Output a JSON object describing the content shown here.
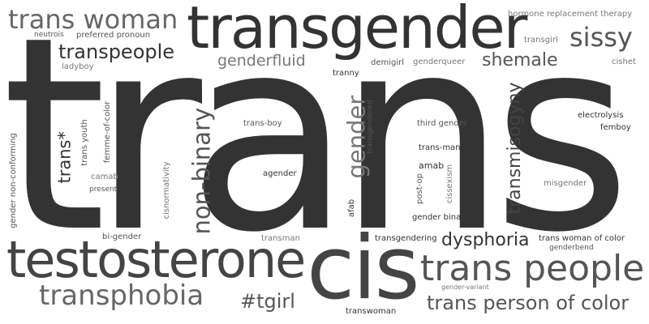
{
  "colors": {
    "background": "#ffffff",
    "dark": "#333333",
    "mid": "#5a5a5a",
    "light": "#7a7a7a"
  },
  "words": {
    "trans": "trans",
    "transgender": "transgender",
    "testosterone": "testosterone",
    "cis": "cis",
    "trans_people": "trans people",
    "trans_woman": "trans woman",
    "transphobia": "transphobia",
    "non_binary": "non-binary",
    "gender": "gender",
    "transmisogyny": "transmisogyny",
    "trans_person_of_color": "trans person of color",
    "sissy": "sissy",
    "transpeople": "transpeople",
    "dysphoria": "dysphoria",
    "shemale": "shemale",
    "tgirl": "#tgirl",
    "genderfluid": "genderfluid",
    "trans_star": "trans*",
    "hormone_replacement_therapy": "hormone replacement therapy",
    "neutrois": "neutrois",
    "preferred_pronoun": "preferred pronoun",
    "ladyboy": "ladyboy",
    "transgirl": "transgirl",
    "tranny": "tranny",
    "demigirl": "demigirl",
    "genderqueer": "genderqueer",
    "cishet": "cishet",
    "trans_youth": "trans youth",
    "femme_of_color": "femme-of-color",
    "bi_gender": "bi-gender",
    "gender_non_conforming": "gender non-conforming",
    "camab": "camab",
    "present": "present",
    "cisnormativity": "cisnormativity",
    "trans_boy": "trans-boy",
    "agender": "agender",
    "transgendered": "transgendered",
    "third_gender": "third gender",
    "trans_man": "trans-man",
    "amab": "amab",
    "post_op": "post-op",
    "cissexism": "cissexism",
    "afab": "afab",
    "gender_binary": "gender binary",
    "electrolysis": "electrolysis",
    "femboy": "femboy",
    "misgender": "misgender",
    "transman": "transman",
    "transgendering": "transgendering",
    "trans_woman_of_color": "trans woman of color",
    "genderbend": "genderbend",
    "gender_variant": "gender-variant",
    "transwoman": "transwoman"
  }
}
